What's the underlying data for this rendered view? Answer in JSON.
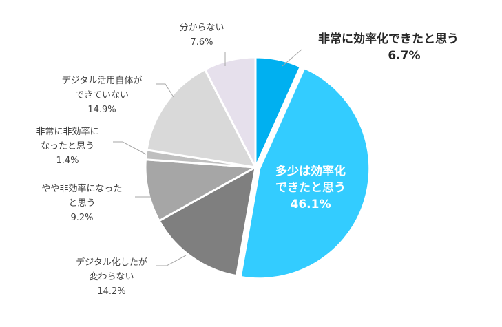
{
  "chart_data": {
    "type": "pie",
    "title": "",
    "slices": [
      {
        "label_lines": [
          "非常に効率化できたと思う"
        ],
        "value_text": "6.7%",
        "value": 6.7,
        "color": "#00b0f0"
      },
      {
        "label_lines": [
          "多少は効率化",
          "できたと思う"
        ],
        "value_text": "46.1%",
        "value": 46.1,
        "color": "#33ccff"
      },
      {
        "label_lines": [
          "デジタル化したが",
          "変わらない"
        ],
        "value_text": "14.2%",
        "value": 14.2,
        "color": "#7f7f7f"
      },
      {
        "label_lines": [
          "やや非効率になった",
          "と思う"
        ],
        "value_text": "9.2%",
        "value": 9.2,
        "color": "#a6a6a6"
      },
      {
        "label_lines": [
          "非常に非効率に",
          "なったと思う"
        ],
        "value_text": "1.4%",
        "value": 1.4,
        "color": "#bfbfbf"
      },
      {
        "label_lines": [
          "デジタル活用自体が",
          "できていない"
        ],
        "value_text": "14.9%",
        "value": 14.9,
        "color": "#d9d9d9"
      },
      {
        "label_lines": [
          "分からない"
        ],
        "value_text": "7.6%",
        "value": 7.6,
        "color": "#e6e0ec"
      }
    ],
    "start_angle": "12 o'clock",
    "direction": "clockwise",
    "legend": "none"
  }
}
